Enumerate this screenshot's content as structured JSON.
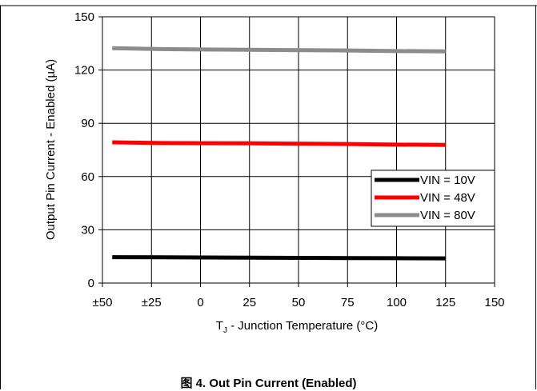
{
  "figure": {
    "caption": "图 4. Out Pin Current (Enabled)"
  },
  "chart_data": {
    "type": "line",
    "title": "",
    "xlabel_main": "T",
    "xlabel_sub": "J",
    "xlabel_rest": " - Junction Temperature (°C)",
    "ylabel": "Output Pin Current - Enabled (µA)",
    "xlim": [
      -50,
      150
    ],
    "ylim": [
      0,
      150
    ],
    "xticks": [
      -50,
      -25,
      0,
      25,
      50,
      75,
      100,
      125,
      150
    ],
    "xtick_labels": [
      "±50",
      "±25",
      "0",
      "25",
      "50",
      "75",
      "100",
      "125",
      "150"
    ],
    "yticks": [
      0,
      30,
      60,
      90,
      120,
      150
    ],
    "ytick_labels": [
      "0",
      "30",
      "60",
      "90",
      "120",
      "150"
    ],
    "grid": true,
    "legend_position": "lower-right",
    "series": [
      {
        "name": "VIN = 10V",
        "color": "#000000",
        "x": [
          -45,
          -20,
          0,
          25,
          50,
          75,
          100,
          125
        ],
        "y": [
          14.6,
          14.5,
          14.4,
          14.3,
          14.2,
          14.1,
          14.0,
          13.9
        ]
      },
      {
        "name": "VIN = 48V",
        "color": "#ff0000",
        "x": [
          -45,
          -20,
          0,
          25,
          50,
          75,
          100,
          125
        ],
        "y": [
          79.3,
          78.9,
          78.8,
          78.7,
          78.5,
          78.3,
          78.0,
          77.8
        ]
      },
      {
        "name": "VIN = 80V",
        "color": "#8c8c8c",
        "x": [
          -45,
          -20,
          0,
          25,
          50,
          75,
          100,
          125
        ],
        "y": [
          132.3,
          131.8,
          131.6,
          131.4,
          131.2,
          131.0,
          130.7,
          130.5
        ]
      }
    ]
  }
}
